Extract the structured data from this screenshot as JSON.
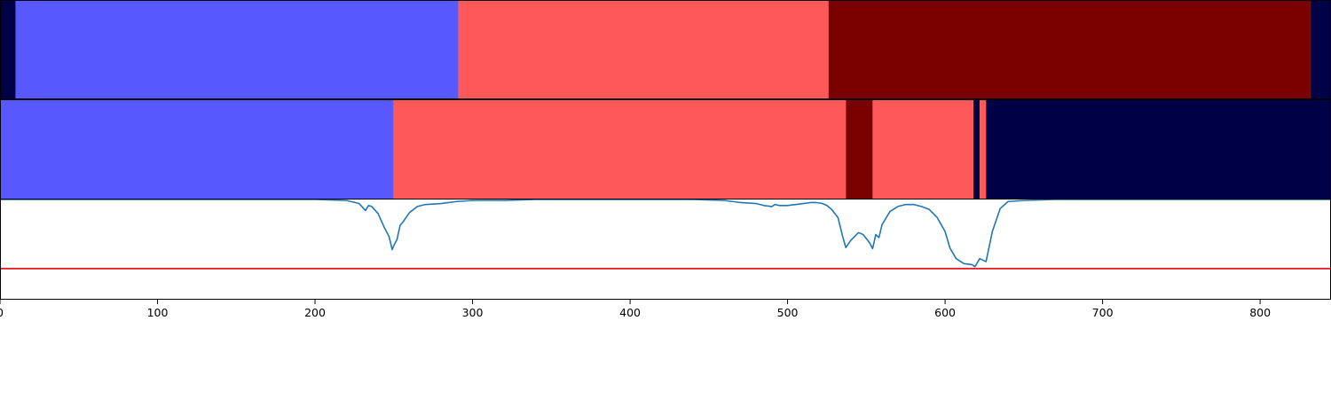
{
  "chart_data": {
    "type": "area",
    "xlim": [
      0,
      845
    ],
    "xticks": [
      0,
      100,
      200,
      300,
      400,
      500,
      600,
      700,
      800
    ],
    "xtick_labels": [
      "0",
      "100",
      "200",
      "300",
      "400",
      "500",
      "600",
      "700",
      "800"
    ],
    "colors": {
      "dark_navy": "#000047",
      "blue": "#5858ff",
      "red": "#ff5858",
      "dark_red": "#7b0000",
      "line": "#1f77b4",
      "threshold": "#e8000b"
    },
    "segment_tracks": [
      {
        "segments": [
          {
            "start": 0,
            "end": 10,
            "color": "dark_navy"
          },
          {
            "start": 10,
            "end": 291,
            "color": "blue"
          },
          {
            "start": 291,
            "end": 526,
            "color": "red"
          },
          {
            "start": 526,
            "end": 832,
            "color": "dark_red"
          },
          {
            "start": 832,
            "end": 845,
            "color": "dark_navy"
          }
        ]
      },
      {
        "segments": [
          {
            "start": 0,
            "end": 250,
            "color": "blue"
          },
          {
            "start": 250,
            "end": 537,
            "color": "red"
          },
          {
            "start": 537,
            "end": 554,
            "color": "dark_red"
          },
          {
            "start": 554,
            "end": 618,
            "color": "red"
          },
          {
            "start": 618,
            "end": 622,
            "color": "dark_navy"
          },
          {
            "start": 622,
            "end": 626,
            "color": "red"
          },
          {
            "start": 626,
            "end": 845,
            "color": "dark_navy"
          }
        ]
      }
    ],
    "line_panel": {
      "ylim": [
        0,
        1
      ],
      "threshold": 0.31,
      "series": {
        "x": [
          0,
          200,
          220,
          228,
          232,
          234,
          236,
          240,
          244,
          247,
          249,
          250,
          252,
          254,
          256,
          260,
          265,
          270,
          280,
          290,
          300,
          320,
          340,
          360,
          400,
          440,
          460,
          470,
          480,
          485,
          490,
          492,
          495,
          500,
          505,
          510,
          515,
          518,
          522,
          525,
          528,
          532,
          535,
          537,
          540,
          545,
          548,
          552,
          554,
          556,
          558,
          560,
          565,
          570,
          575,
          580,
          585,
          590,
          595,
          600,
          603,
          607,
          612,
          617,
          619,
          622,
          626,
          630,
          635,
          640,
          650,
          670,
          700,
          750,
          800,
          845
        ],
        "y": [
          1.0,
          1.0,
          0.99,
          0.96,
          0.89,
          0.94,
          0.93,
          0.86,
          0.72,
          0.63,
          0.5,
          0.54,
          0.6,
          0.74,
          0.78,
          0.87,
          0.93,
          0.95,
          0.96,
          0.98,
          0.99,
          0.99,
          1.0,
          1.0,
          1.0,
          1.0,
          0.99,
          0.97,
          0.96,
          0.94,
          0.93,
          0.95,
          0.94,
          0.94,
          0.95,
          0.96,
          0.97,
          0.97,
          0.96,
          0.94,
          0.9,
          0.82,
          0.63,
          0.52,
          0.59,
          0.67,
          0.65,
          0.57,
          0.51,
          0.65,
          0.62,
          0.75,
          0.88,
          0.93,
          0.95,
          0.95,
          0.93,
          0.9,
          0.82,
          0.68,
          0.52,
          0.41,
          0.36,
          0.35,
          0.33,
          0.41,
          0.38,
          0.68,
          0.91,
          0.98,
          0.99,
          1.0,
          1.0,
          1.0,
          1.0,
          1.0
        ]
      }
    }
  }
}
